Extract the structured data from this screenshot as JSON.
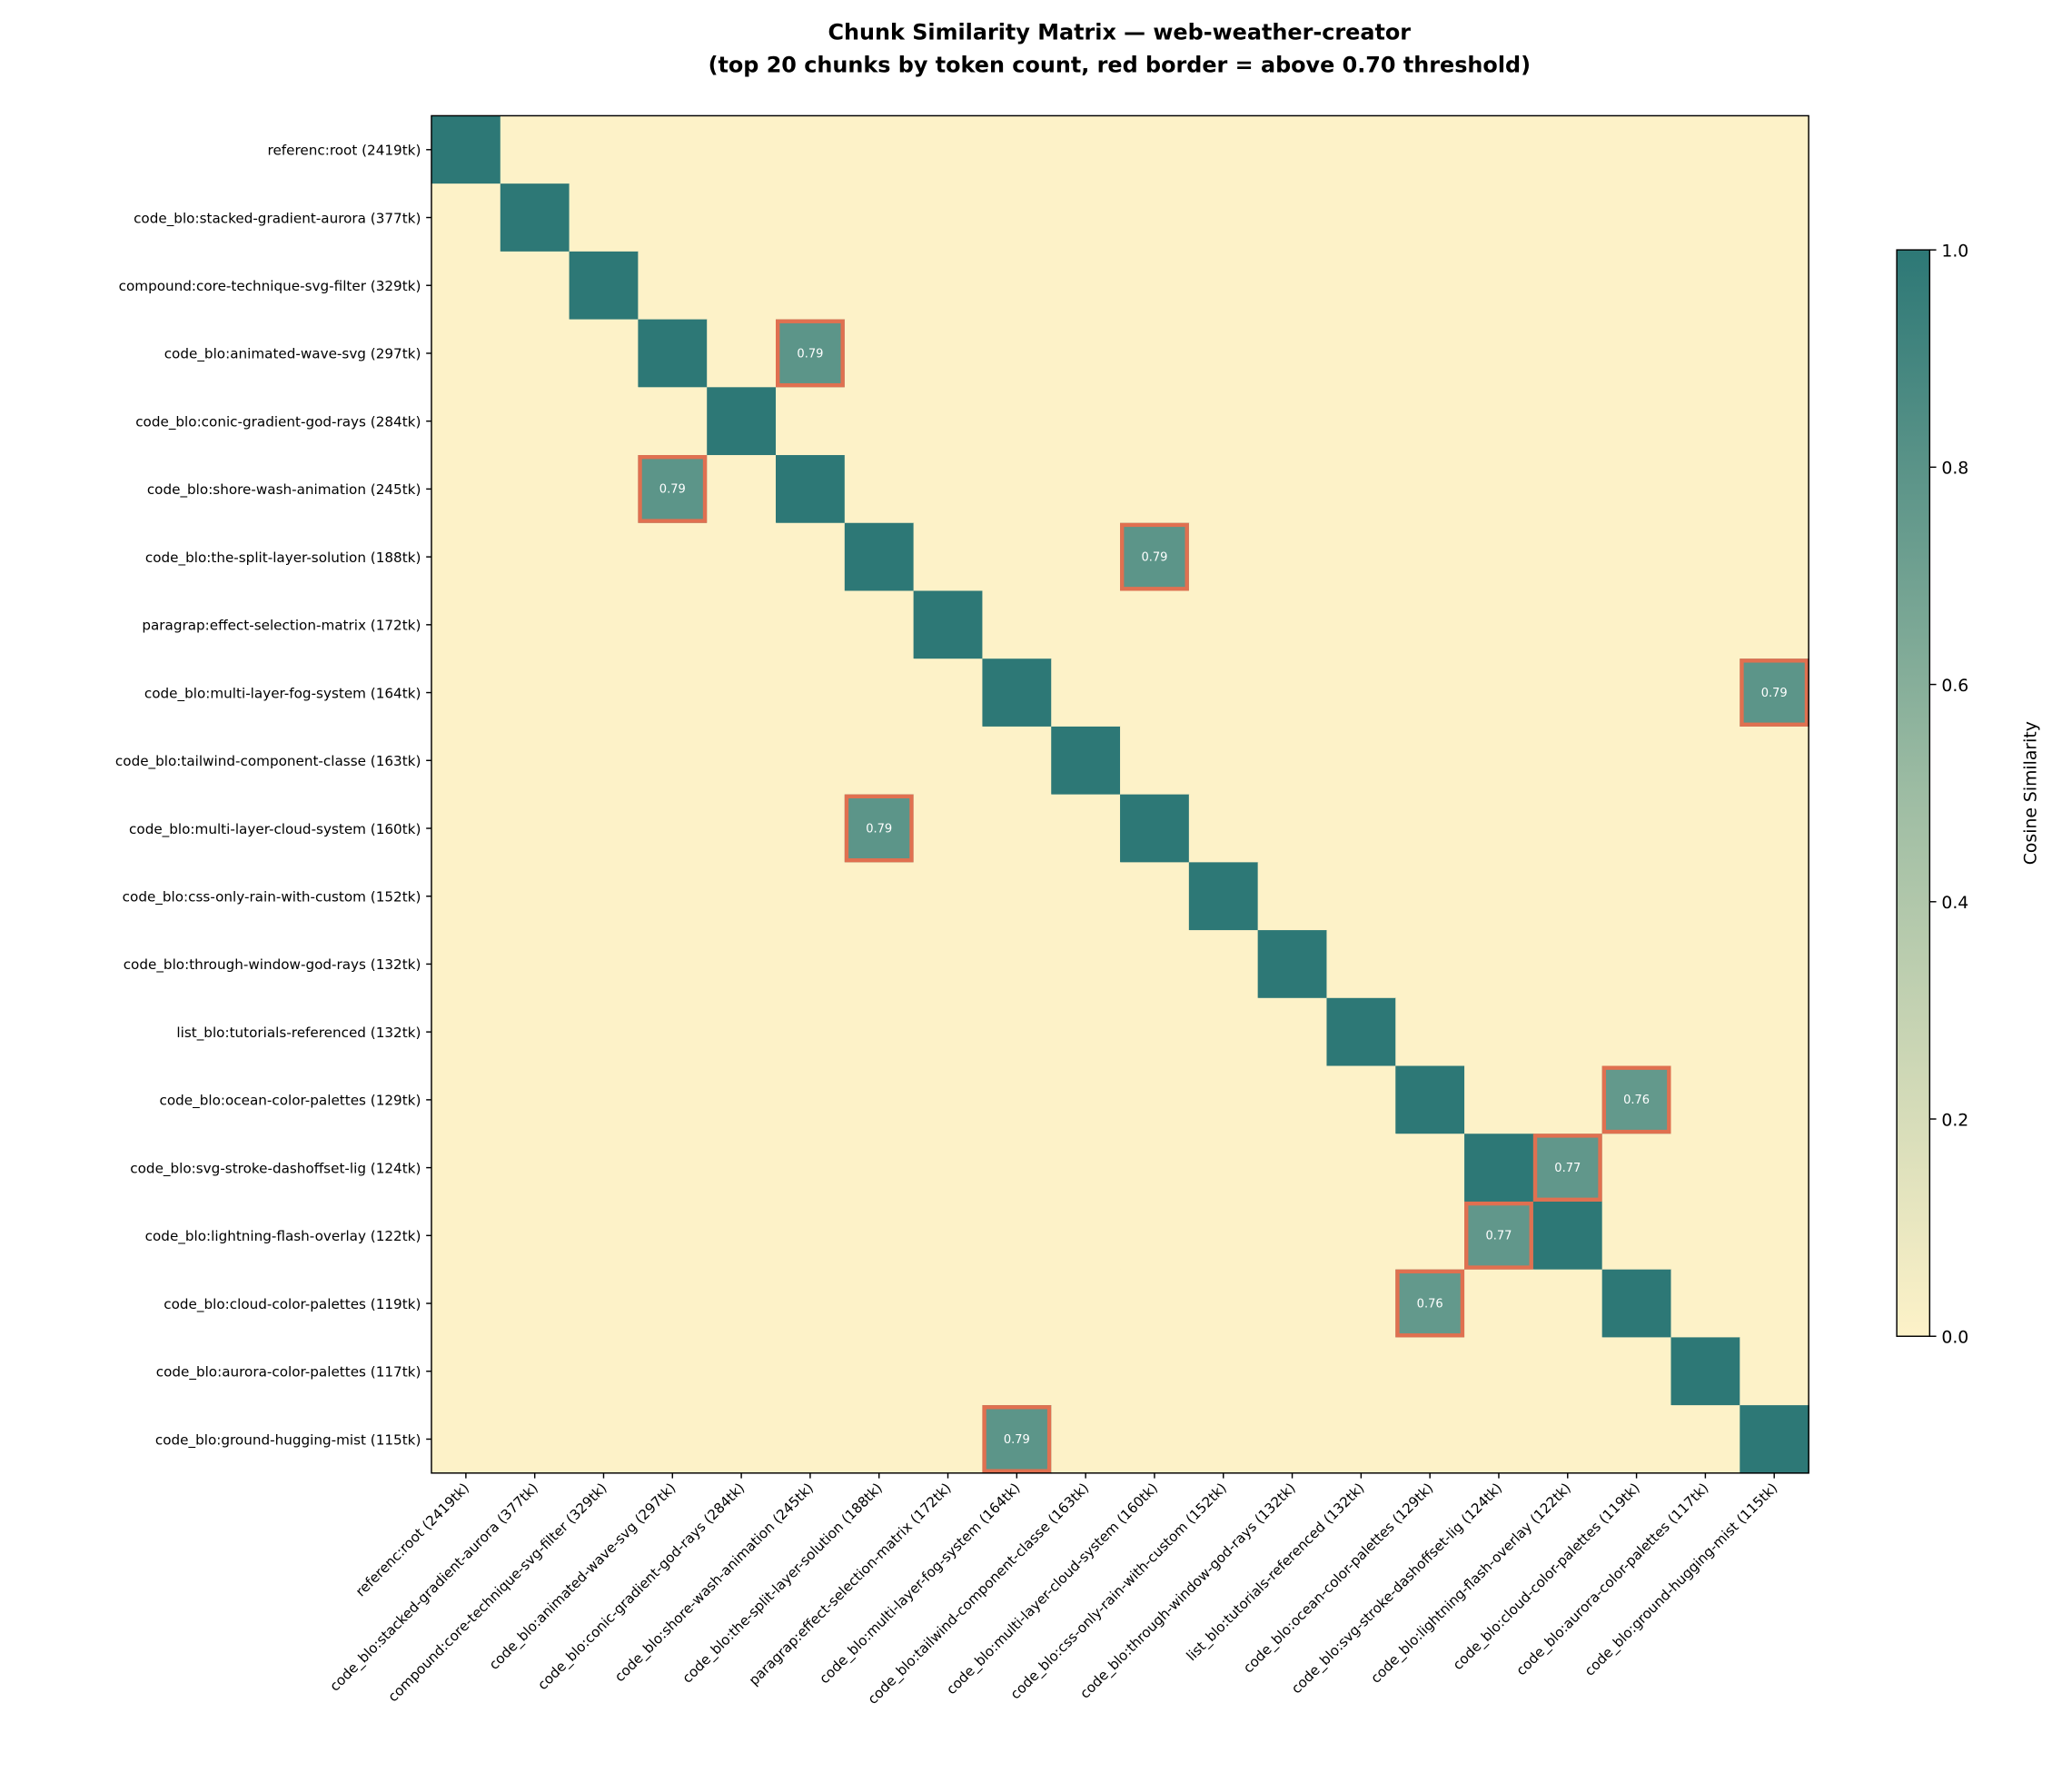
{
  "chart_data": {
    "type": "heatmap",
    "title": "Chunk Similarity Matrix — web-weather-creator",
    "subtitle": "(top 20 chunks by token count, red border = above 0.70 threshold)",
    "labels": [
      "referenc:root (2419tk)",
      "code_blo:stacked-gradient-aurora (377tk)",
      "compound:core-technique-svg-filter (329tk)",
      "code_blo:animated-wave-svg (297tk)",
      "code_blo:conic-gradient-god-rays (284tk)",
      "code_blo:shore-wash-animation (245tk)",
      "code_blo:the-split-layer-solution (188tk)",
      "paragrap:effect-selection-matrix (172tk)",
      "code_blo:multi-layer-fog-system (164tk)",
      "code_blo:tailwind-component-classe (163tk)",
      "code_blo:multi-layer-cloud-system (160tk)",
      "code_blo:css-only-rain-with-custom (152tk)",
      "code_blo:through-window-god-rays (132tk)",
      "list_blo:tutorials-referenced (132tk)",
      "code_blo:ocean-color-palettes (129tk)",
      "code_blo:svg-stroke-dashoffset-lig (124tk)",
      "code_blo:lightning-flash-overlay (122tk)",
      "code_blo:cloud-color-palettes (119tk)",
      "code_blo:aurora-color-palettes (117tk)",
      "code_blo:ground-hugging-mist (115tk)"
    ],
    "diagonal_value": 1.0,
    "default_value": 0.0,
    "highlighted_pairs": [
      {
        "row": 3,
        "col": 5,
        "value": 0.79,
        "label": "0.79"
      },
      {
        "row": 5,
        "col": 3,
        "value": 0.79,
        "label": "0.79"
      },
      {
        "row": 6,
        "col": 10,
        "value": 0.79,
        "label": "0.79"
      },
      {
        "row": 10,
        "col": 6,
        "value": 0.79,
        "label": "0.79"
      },
      {
        "row": 8,
        "col": 19,
        "value": 0.79,
        "label": "0.79"
      },
      {
        "row": 19,
        "col": 8,
        "value": 0.79,
        "label": "0.79"
      },
      {
        "row": 14,
        "col": 17,
        "value": 0.76,
        "label": "0.76"
      },
      {
        "row": 17,
        "col": 14,
        "value": 0.76,
        "label": "0.76"
      },
      {
        "row": 15,
        "col": 16,
        "value": 0.77,
        "label": "0.77"
      },
      {
        "row": 16,
        "col": 15,
        "value": 0.77,
        "label": "0.77"
      }
    ],
    "threshold": 0.7,
    "colorbar": {
      "label": "Cosine Similarity",
      "range": [
        0.0,
        1.0
      ],
      "ticks": [
        "0.0",
        "0.2",
        "0.4",
        "0.6",
        "0.8",
        "1.0"
      ]
    },
    "colors": {
      "low": "#fdf2c8",
      "mid": "#9dbca3",
      "high": "#2d7876",
      "highlight_border": "#e07050"
    },
    "grid": false
  }
}
